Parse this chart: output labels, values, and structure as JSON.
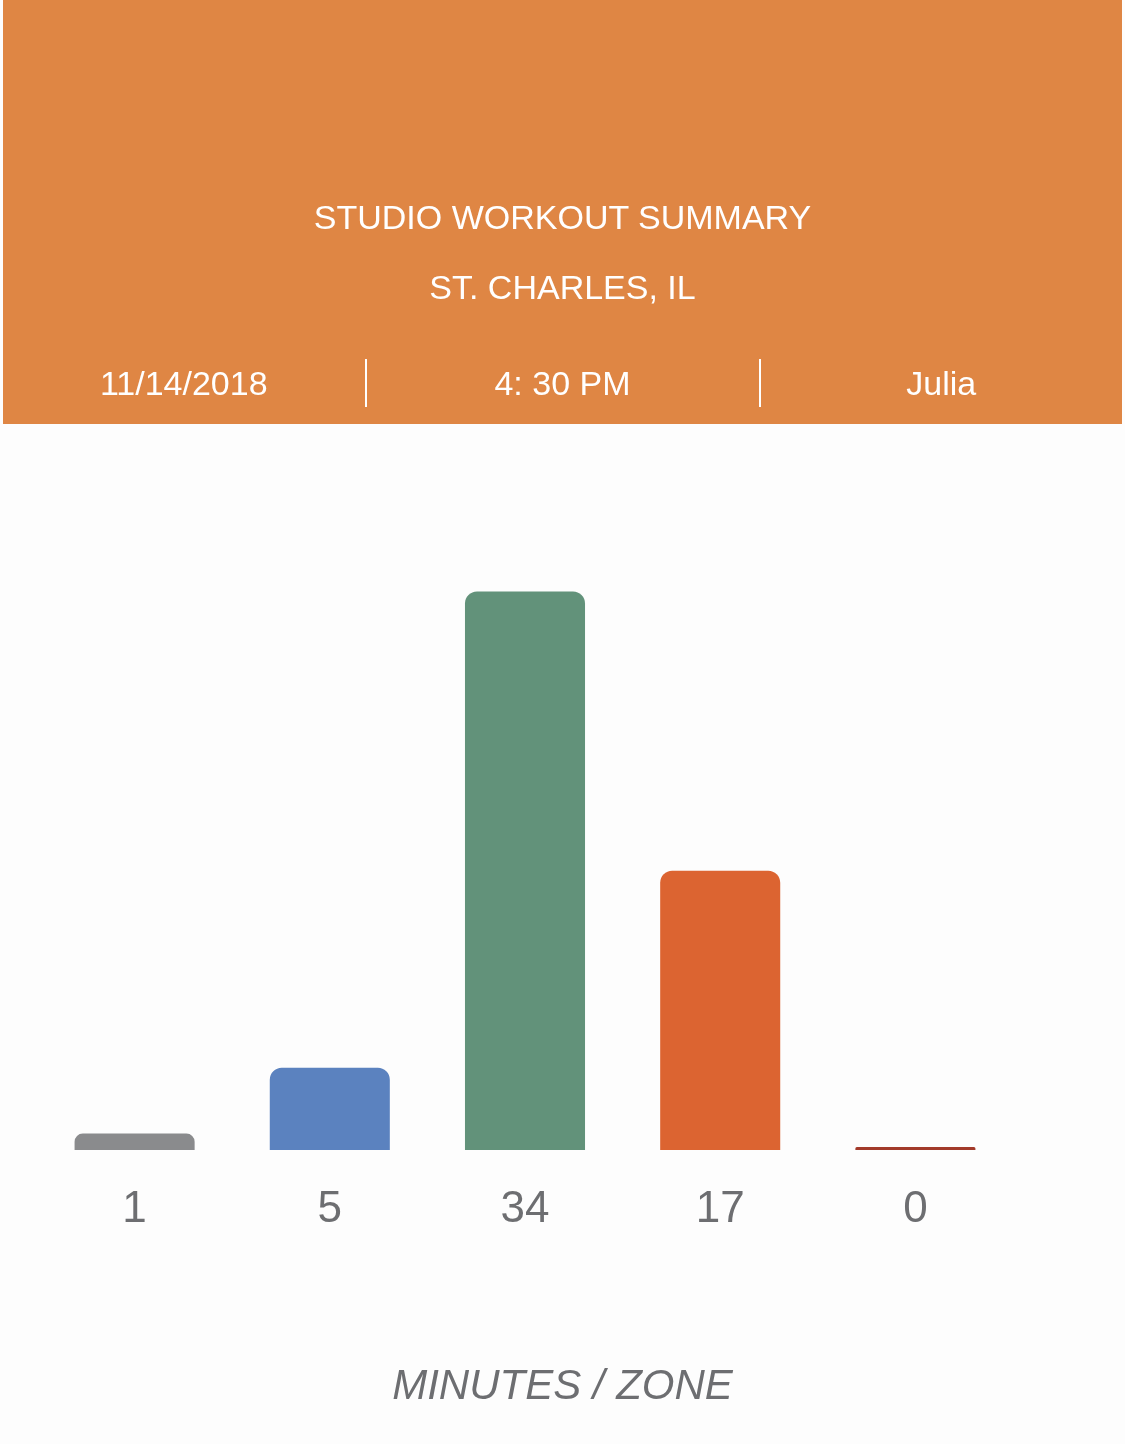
{
  "chart_data": {
    "type": "bar",
    "title": "STUDIO WORKOUT SUMMARY",
    "subtitle": "ST. CHARLES, IL",
    "annotations": [
      "11/14/2018",
      "4: 30 PM",
      "Julia",
      "MINUTES / ZONE"
    ],
    "categories": [
      null,
      null,
      null,
      null,
      null
    ],
    "values": [
      1,
      5,
      34,
      17,
      0
    ],
    "colors": [
      "#8a8b8d",
      "#5b82bf",
      "#62927a",
      "#dc6431",
      "#a23a2a"
    ],
    "data_labels": true
  }
}
